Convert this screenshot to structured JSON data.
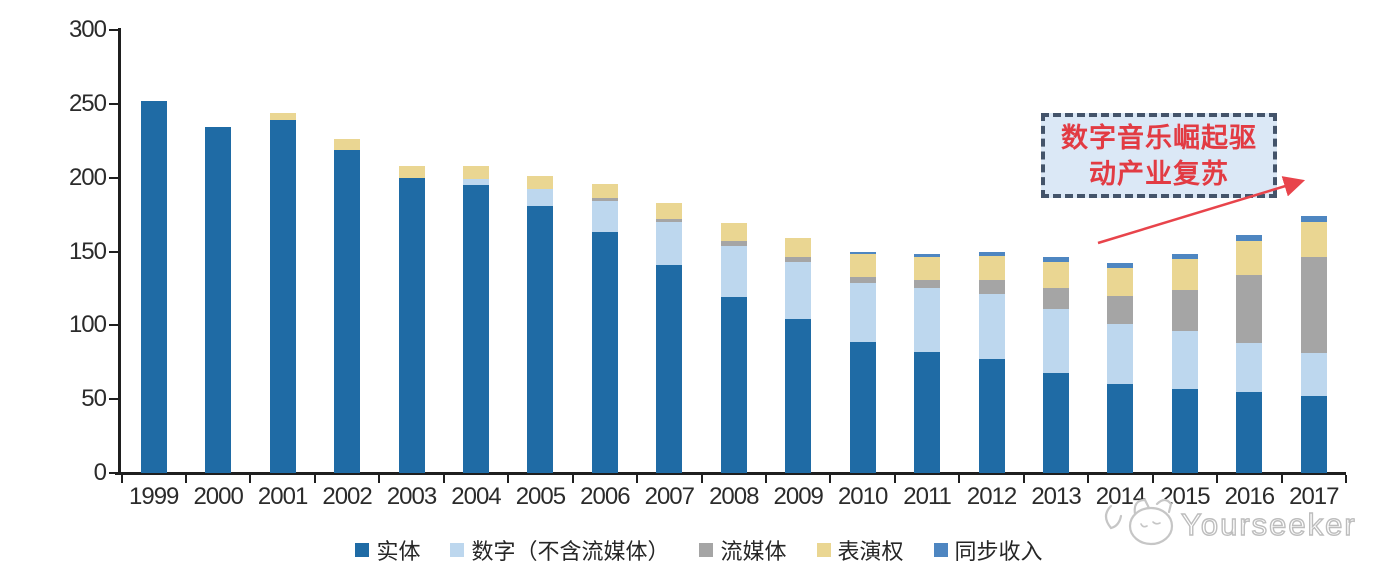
{
  "chart_data": {
    "type": "bar",
    "stacked": true,
    "title": "",
    "xlabel": "",
    "ylabel": "",
    "ylim": [
      0,
      300
    ],
    "y_ticks": [
      0,
      50,
      100,
      150,
      200,
      250,
      300
    ],
    "grid": false,
    "legend_position": "bottom",
    "categories": [
      "1999",
      "2000",
      "2001",
      "2002",
      "2003",
      "2004",
      "2005",
      "2006",
      "2007",
      "2008",
      "2009",
      "2010",
      "2011",
      "2012",
      "2013",
      "2014",
      "2015",
      "2016",
      "2017"
    ],
    "series": [
      {
        "key": "physical",
        "name": "实体",
        "color": "#1f6ba5",
        "values": [
          252,
          234,
          239,
          219,
          200,
          195,
          181,
          163,
          141,
          119,
          104,
          89,
          82,
          77,
          68,
          60,
          57,
          55,
          52
        ]
      },
      {
        "key": "digital-excl-streaming",
        "name": "数字（不含流媒体）",
        "color": "#bdd7ee",
        "values": [
          0,
          0,
          0,
          0,
          0,
          4,
          11,
          21,
          29,
          35,
          39,
          40,
          43,
          44,
          43,
          41,
          39,
          33,
          29
        ]
      },
      {
        "key": "streaming",
        "name": "流媒体",
        "color": "#a5a5a5",
        "values": [
          0,
          0,
          0,
          0,
          0,
          0,
          0,
          2,
          2,
          3,
          3,
          4,
          6,
          10,
          14,
          19,
          28,
          46,
          65
        ]
      },
      {
        "key": "performance-rights",
        "name": "表演权",
        "color": "#ead692",
        "values": [
          0,
          0,
          5,
          7,
          8,
          9,
          9,
          10,
          11,
          12,
          13,
          15,
          15,
          16,
          18,
          19,
          21,
          23,
          24
        ]
      },
      {
        "key": "sync-revenue",
        "name": "同步收入",
        "color": "#4e86c1",
        "values": [
          0,
          0,
          0,
          0,
          0,
          0,
          0,
          0,
          0,
          0,
          0,
          2,
          2,
          3,
          3,
          3,
          3,
          4,
          4
        ]
      }
    ]
  },
  "annotation": {
    "line1": "数字音乐崛起驱",
    "line2": "动产业复苏"
  },
  "watermark": {
    "text": "Yourseeker",
    "logo": "yourseeker-cat-logo"
  },
  "colors": {
    "axis": "#1f1f1f",
    "label": "#2b2b2b",
    "annotation_border": "#44546a",
    "annotation_fill": "#dbe8f6",
    "annotation_text": "#e23b43",
    "arrow": "#e8444b",
    "watermark": "#c6c6c6"
  }
}
